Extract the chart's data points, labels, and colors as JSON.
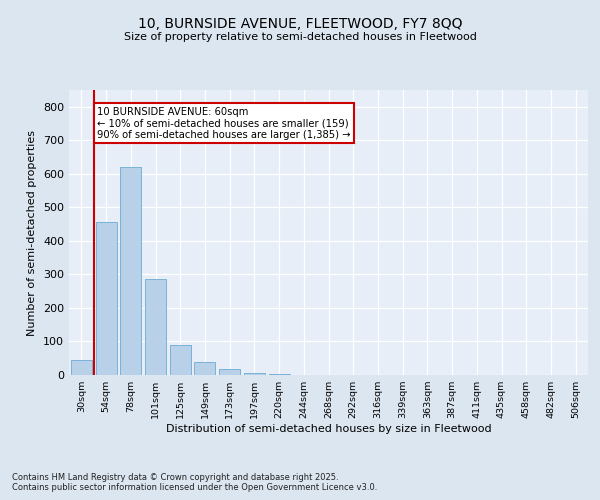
{
  "title_line1": "10, BURNSIDE AVENUE, FLEETWOOD, FY7 8QQ",
  "title_line2": "Size of property relative to semi-detached houses in Fleetwood",
  "xlabel": "Distribution of semi-detached houses by size in Fleetwood",
  "ylabel": "Number of semi-detached properties",
  "footnote": "Contains HM Land Registry data © Crown copyright and database right 2025.\nContains public sector information licensed under the Open Government Licence v3.0.",
  "categories": [
    "30sqm",
    "54sqm",
    "78sqm",
    "101sqm",
    "125sqm",
    "149sqm",
    "173sqm",
    "197sqm",
    "220sqm",
    "244sqm",
    "268sqm",
    "292sqm",
    "316sqm",
    "339sqm",
    "363sqm",
    "387sqm",
    "411sqm",
    "435sqm",
    "458sqm",
    "482sqm",
    "506sqm"
  ],
  "values": [
    45,
    455,
    620,
    285,
    90,
    38,
    18,
    7,
    3,
    0,
    0,
    0,
    0,
    0,
    0,
    0,
    0,
    0,
    0,
    0,
    0
  ],
  "bar_color": "#b8d0e8",
  "bar_edge_color": "#6aaad4",
  "red_line_index": 1,
  "annotation_title": "10 BURNSIDE AVENUE: 60sqm",
  "annotation_line1": "← 10% of semi-detached houses are smaller (159)",
  "annotation_line2": "90% of semi-detached houses are larger (1,385) →",
  "ylim": [
    0,
    850
  ],
  "yticks": [
    0,
    100,
    200,
    300,
    400,
    500,
    600,
    700,
    800
  ],
  "background_color": "#dce6f0",
  "plot_background_color": "#e8eef8",
  "grid_color": "#ffffff",
  "red_line_color": "#cc0000",
  "annotation_box_facecolor": "#ffffff",
  "annotation_box_edgecolor": "#cc0000"
}
